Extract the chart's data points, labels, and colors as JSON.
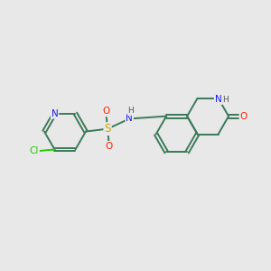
{
  "background_color": "#e8e8e8",
  "bond_color": "#3a7a5a",
  "atom_colors": {
    "N": "#1a1aff",
    "O": "#ff2200",
    "S": "#ccaa00",
    "Cl": "#22cc00",
    "H": "#555555",
    "C": "#3a7a5a"
  },
  "figsize": [
    3.0,
    3.0
  ],
  "dpi": 100
}
